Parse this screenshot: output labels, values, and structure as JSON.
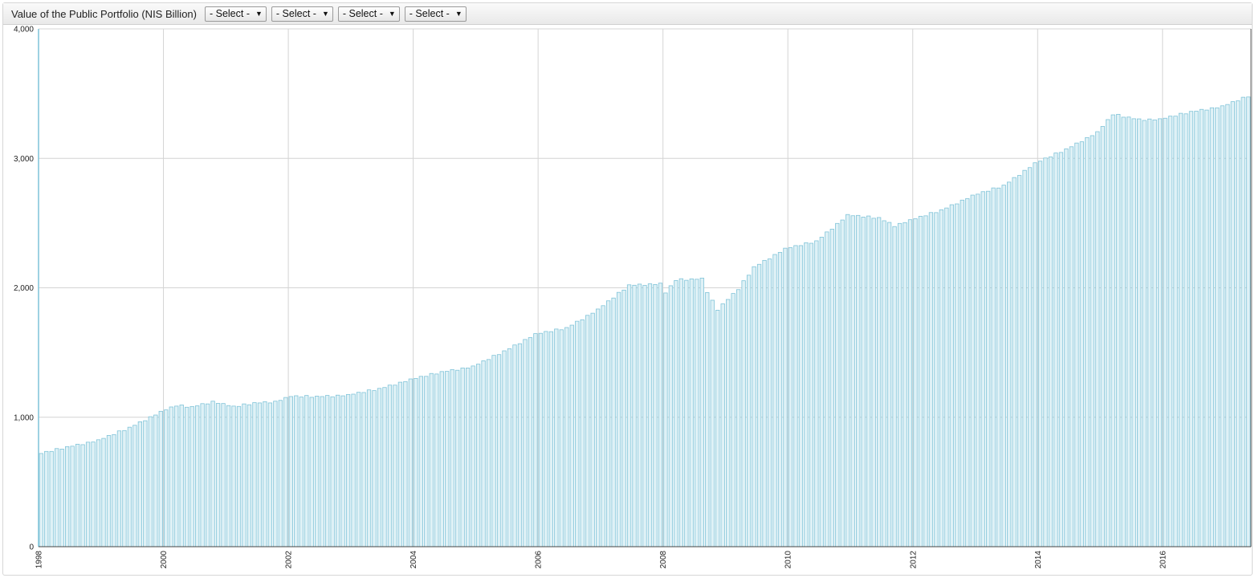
{
  "header": {
    "title": "Value of the Public Portfolio (NIS Billion)",
    "selects": [
      {
        "label": "- Select -"
      },
      {
        "label": "- Select -"
      },
      {
        "label": "- Select -"
      },
      {
        "label": "- Select -"
      }
    ],
    "arrow_glyph": "▼"
  },
  "chart_data": {
    "type": "bar",
    "title": "Value of the Public Portfolio (NIS Billion)",
    "xlabel": "",
    "ylabel": "",
    "frequency": "monthly",
    "x_start": "1998-01",
    "x_end": "2017-05",
    "ylim": [
      0,
      4000
    ],
    "xlim": [
      "1998-01",
      "2017-06"
    ],
    "yticks": [
      0,
      1000,
      2000,
      3000,
      4000
    ],
    "ytick_labels": [
      "0",
      "1,000",
      "2,000",
      "3,000",
      "4,000"
    ],
    "xticks": [
      "1998",
      "2000",
      "2002",
      "2004",
      "2006",
      "2008",
      "2010",
      "2012",
      "2014",
      "2016"
    ],
    "grid": true,
    "legend": "none",
    "bar_fill": "#dff1f6",
    "bar_stroke": "#7fc3d8",
    "grid_color": "#d4d4d4",
    "anchors": [
      [
        "1998-01",
        720
      ],
      [
        "1998-06",
        770
      ],
      [
        "1998-12",
        820
      ],
      [
        "1999-06",
        920
      ],
      [
        "1999-12",
        1040
      ],
      [
        "2000-03",
        1090
      ],
      [
        "2000-06",
        1080
      ],
      [
        "2000-10",
        1120
      ],
      [
        "2001-02",
        1080
      ],
      [
        "2001-06",
        1110
      ],
      [
        "2001-10",
        1120
      ],
      [
        "2002-01",
        1160
      ],
      [
        "2002-06",
        1160
      ],
      [
        "2002-12",
        1170
      ],
      [
        "2003-06",
        1220
      ],
      [
        "2003-12",
        1290
      ],
      [
        "2004-06",
        1350
      ],
      [
        "2004-12",
        1390
      ],
      [
        "2005-06",
        1510
      ],
      [
        "2005-12",
        1640
      ],
      [
        "2006-06",
        1690
      ],
      [
        "2006-12",
        1830
      ],
      [
        "2007-06",
        2020
      ],
      [
        "2007-12",
        2030
      ],
      [
        "2008-01",
        1960
      ],
      [
        "2008-03",
        2060
      ],
      [
        "2008-08",
        2070
      ],
      [
        "2008-09",
        1970
      ],
      [
        "2008-11",
        1830
      ],
      [
        "2009-03",
        1990
      ],
      [
        "2009-06",
        2160
      ],
      [
        "2009-12",
        2300
      ],
      [
        "2010-06",
        2360
      ],
      [
        "2010-12",
        2560
      ],
      [
        "2011-06",
        2540
      ],
      [
        "2011-09",
        2480
      ],
      [
        "2011-12",
        2520
      ],
      [
        "2012-06",
        2600
      ],
      [
        "2012-12",
        2710
      ],
      [
        "2013-06",
        2790
      ],
      [
        "2013-12",
        2960
      ],
      [
        "2014-06",
        3070
      ],
      [
        "2014-12",
        3200
      ],
      [
        "2015-03",
        3340
      ],
      [
        "2015-08",
        3300
      ],
      [
        "2015-12",
        3300
      ],
      [
        "2016-06",
        3360
      ],
      [
        "2016-12",
        3400
      ],
      [
        "2017-05",
        3480
      ]
    ]
  }
}
